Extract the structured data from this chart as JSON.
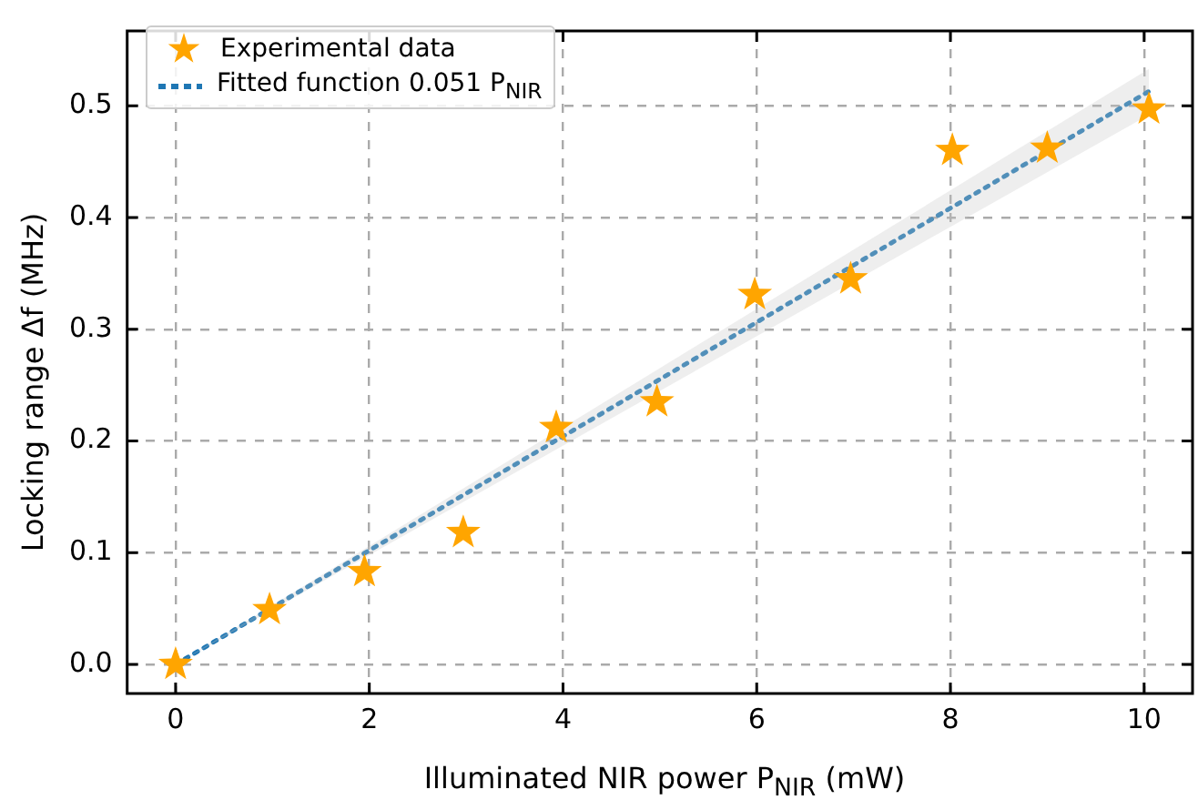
{
  "chart_data": {
    "type": "scatter",
    "xlabel": "Illuminated NIR power P$_{NIR}$ (mW)",
    "ylabel": "Locking range Δf (MHz)",
    "series": [
      {
        "name": "Experimental data",
        "color": "#ffa500",
        "marker": "star",
        "x": [
          0,
          0.97,
          1.95,
          2.97,
          3.93,
          4.97,
          5.98,
          6.97,
          8.02,
          9.0,
          10.05
        ],
        "values": [
          0,
          0.049,
          0.083,
          0.118,
          0.212,
          0.235,
          0.331,
          0.345,
          0.46,
          0.462,
          0.497
        ]
      },
      {
        "name": "Fitted function 0.051 P$_{NIR}$",
        "type": "line",
        "color": "#1f77b4",
        "line_style": "dotted",
        "marker": "none",
        "x": [
          0,
          10.05
        ],
        "values": [
          0,
          0.513
        ],
        "lower": [
          0,
          0.492
        ],
        "upper": [
          0,
          0.533
        ]
      }
    ],
    "xlim": [
      -0.5,
      10.5
    ],
    "xticks": [
      0,
      2,
      4,
      6,
      8,
      10
    ],
    "ylim": [
      -0.026,
      0.567
    ],
    "yticks": [
      {
        "value": 0,
        "label": "0.0"
      },
      0.1,
      0.2,
      0.3,
      0.4,
      0.5
    ],
    "grid": true,
    "legend": "top left"
  }
}
